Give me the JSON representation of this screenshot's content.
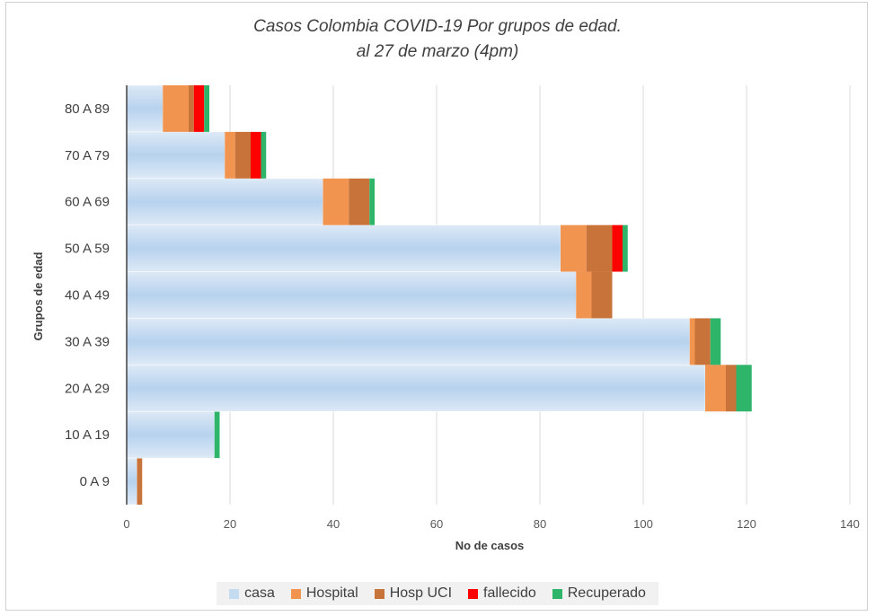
{
  "chart_data": {
    "type": "bar",
    "orientation": "horizontal",
    "stacked": true,
    "title": "Casos Colombia COVID-19 Por grupos de edad.",
    "subtitle": "al 27 de marzo (4pm)",
    "xlabel": "No de casos",
    "ylabel": "Grupos de edad",
    "xlim": [
      0,
      140
    ],
    "x_ticks": [
      0,
      20,
      40,
      60,
      80,
      100,
      120,
      140
    ],
    "grid": true,
    "legend_position": "bottom",
    "categories": [
      "0 A 9",
      "10 A 19",
      "20 A 29",
      "30 A 39",
      "40 A 49",
      "50 A 59",
      "60 A 69",
      "70 A 79",
      "80 A 89"
    ],
    "series": [
      {
        "name": "casa",
        "color": "#c5dbf0",
        "values": [
          2,
          17,
          112,
          109,
          87,
          84,
          38,
          19,
          7
        ]
      },
      {
        "name": "Hospital",
        "color": "#f0944f",
        "values": [
          0,
          0,
          4,
          1,
          3,
          5,
          5,
          2,
          5
        ]
      },
      {
        "name": "Hosp UCI",
        "color": "#c8733a",
        "values": [
          1,
          0,
          2,
          3,
          4,
          5,
          4,
          3,
          1
        ]
      },
      {
        "name": "fallecido",
        "color": "#ff0000",
        "values": [
          0,
          0,
          0,
          0,
          0,
          2,
          0,
          2,
          2
        ]
      },
      {
        "name": "Recuperado",
        "color": "#2eb56a",
        "values": [
          0,
          1,
          3,
          2,
          0,
          1,
          1,
          1,
          1
        ]
      }
    ]
  }
}
